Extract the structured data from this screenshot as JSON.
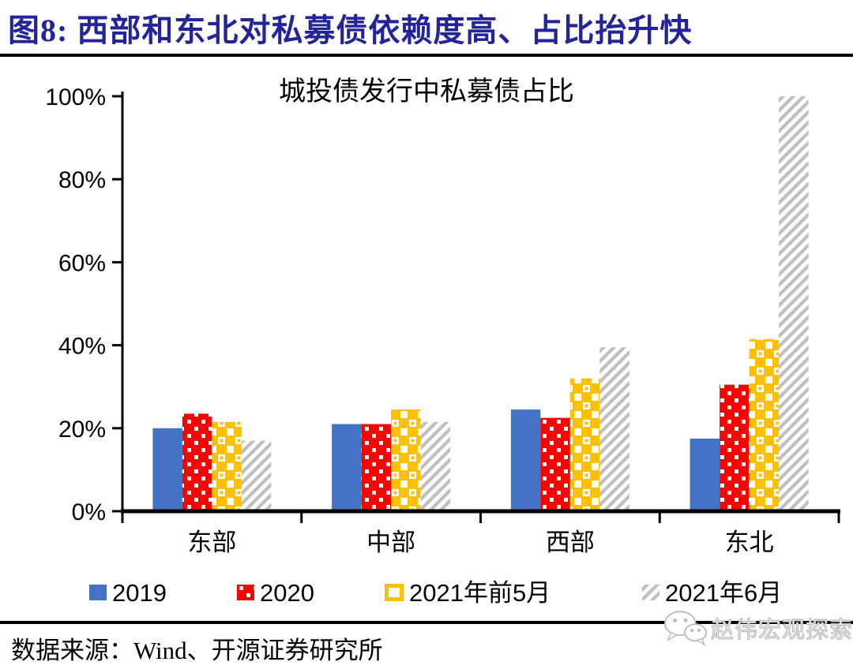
{
  "header": {
    "title": "图8:  西部和东北对私募债依赖度高、占比抬升快",
    "title_color": "#23239A"
  },
  "chart_data": {
    "type": "bar",
    "title": "城投债发行中私募债占比",
    "categories": [
      "东部",
      "中部",
      "西部",
      "东北"
    ],
    "series": [
      {
        "name": "2019",
        "color": "#4472C4",
        "pattern": "solid",
        "values": [
          20,
          21,
          24.5,
          17.5
        ]
      },
      {
        "name": "2020",
        "color": "#FF0000",
        "pattern": "white-dots",
        "values": [
          23.5,
          21,
          22.5,
          30.5
        ]
      },
      {
        "name": "2021年前5月",
        "color": "#FFC000",
        "pattern": "white-checker",
        "values": [
          21.5,
          24.5,
          32,
          41.5
        ]
      },
      {
        "name": "2021年6月",
        "color": "#BFBFBF",
        "pattern": "white-diagonal-stripes",
        "values": [
          17,
          21.5,
          39.5,
          100
        ]
      }
    ],
    "ylim": [
      0,
      100
    ],
    "ytick_values": [
      0,
      20,
      40,
      60,
      80,
      100
    ],
    "yticks": [
      "0%",
      "20%",
      "40%",
      "60%",
      "80%",
      "100%"
    ],
    "grid": false,
    "legend_position": "bottom"
  },
  "footer": {
    "source": "数据来源：Wind、开源证券研究所",
    "watermark": "赵伟宏观探索"
  }
}
